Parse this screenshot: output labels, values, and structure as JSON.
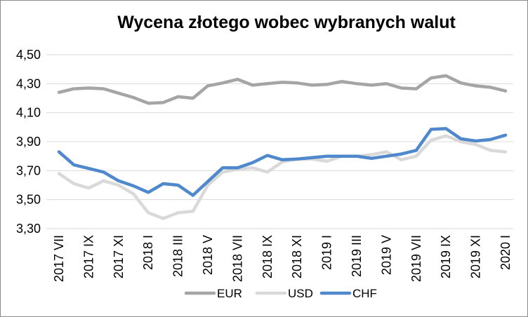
{
  "chart_data": {
    "type": "line",
    "title": "Wycena złotego wobec wybranych walut",
    "xlabel": "",
    "ylabel": "",
    "ylim": [
      3.3,
      4.5
    ],
    "y_ticks": [
      "3,30",
      "3,50",
      "3,70",
      "3,90",
      "4,10",
      "4,30",
      "4,50"
    ],
    "y_tick_values": [
      3.3,
      3.5,
      3.7,
      3.9,
      4.1,
      4.3,
      4.5
    ],
    "grid": "horizontal",
    "legend_position": "bottom",
    "x_tick_labels": [
      "2017 VII",
      "2017 IX",
      "2017 XI",
      "2018 I",
      "2018 III",
      "2018 V",
      "2018 VII",
      "2018 IX",
      "2018 XI",
      "2019 I",
      "2019 III",
      "2019 V",
      "2019 VII",
      "2019 IX",
      "2019 XI",
      "2020 I"
    ],
    "series": [
      {
        "name": "EUR",
        "color": "#a5a5a5",
        "values": [
          4.24,
          4.265,
          4.27,
          4.265,
          4.235,
          4.205,
          4.165,
          4.17,
          4.21,
          4.2,
          4.285,
          4.305,
          4.33,
          4.29,
          4.3,
          4.31,
          4.305,
          4.29,
          4.295,
          4.315,
          4.3,
          4.29,
          4.3,
          4.27,
          4.265,
          4.34,
          4.355,
          4.305,
          4.285,
          4.275,
          4.25
        ]
      },
      {
        "name": "USD",
        "color": "#d9d9d9",
        "values": [
          3.68,
          3.61,
          3.58,
          3.63,
          3.6,
          3.54,
          3.41,
          3.37,
          3.41,
          3.42,
          3.6,
          3.69,
          3.71,
          3.72,
          3.69,
          3.76,
          3.78,
          3.78,
          3.765,
          3.8,
          3.8,
          3.81,
          3.83,
          3.775,
          3.8,
          3.91,
          3.94,
          3.9,
          3.88,
          3.84,
          3.83
        ]
      },
      {
        "name": "CHF",
        "color": "#4f88cc",
        "values": [
          3.83,
          3.74,
          3.715,
          3.69,
          3.63,
          3.595,
          3.55,
          3.61,
          3.6,
          3.53,
          3.625,
          3.72,
          3.72,
          3.755,
          3.805,
          3.775,
          3.78,
          3.79,
          3.8,
          3.8,
          3.8,
          3.785,
          3.8,
          3.815,
          3.84,
          3.985,
          3.99,
          3.92,
          3.905,
          3.915,
          3.945
        ]
      }
    ]
  }
}
